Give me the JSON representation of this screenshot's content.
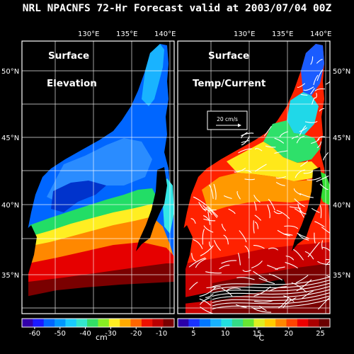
{
  "title": "NRL NPACNFS 72-Hr Forecast valid at 2003/07/04 00Z",
  "longitude_ticks": [
    "130°E",
    "135°E",
    "140°E"
  ],
  "latitude_ticks": [
    "50°N",
    "45°N",
    "40°N",
    "35°N"
  ],
  "left_panel": {
    "title_line1": "Surface",
    "title_line2": "Elevation",
    "colorbar": {
      "labels": [
        "-60",
        "-50",
        "-40",
        "-30",
        "-20",
        "-10"
      ],
      "unit": "cm",
      "range": [
        -65,
        -5
      ]
    }
  },
  "right_panel": {
    "title_line1": "Surface",
    "title_line2": "Temp/Current",
    "reference_vector": "20 cm/s",
    "colorbar": {
      "labels": [
        "5",
        "10",
        "15",
        "20",
        "25"
      ],
      "unit": "°C",
      "range": [
        2.5,
        26.5
      ]
    }
  },
  "colors": {
    "background": "#000000",
    "land": "#000000",
    "grid": "#ffffff",
    "current_vectors": "#ffffff"
  }
}
